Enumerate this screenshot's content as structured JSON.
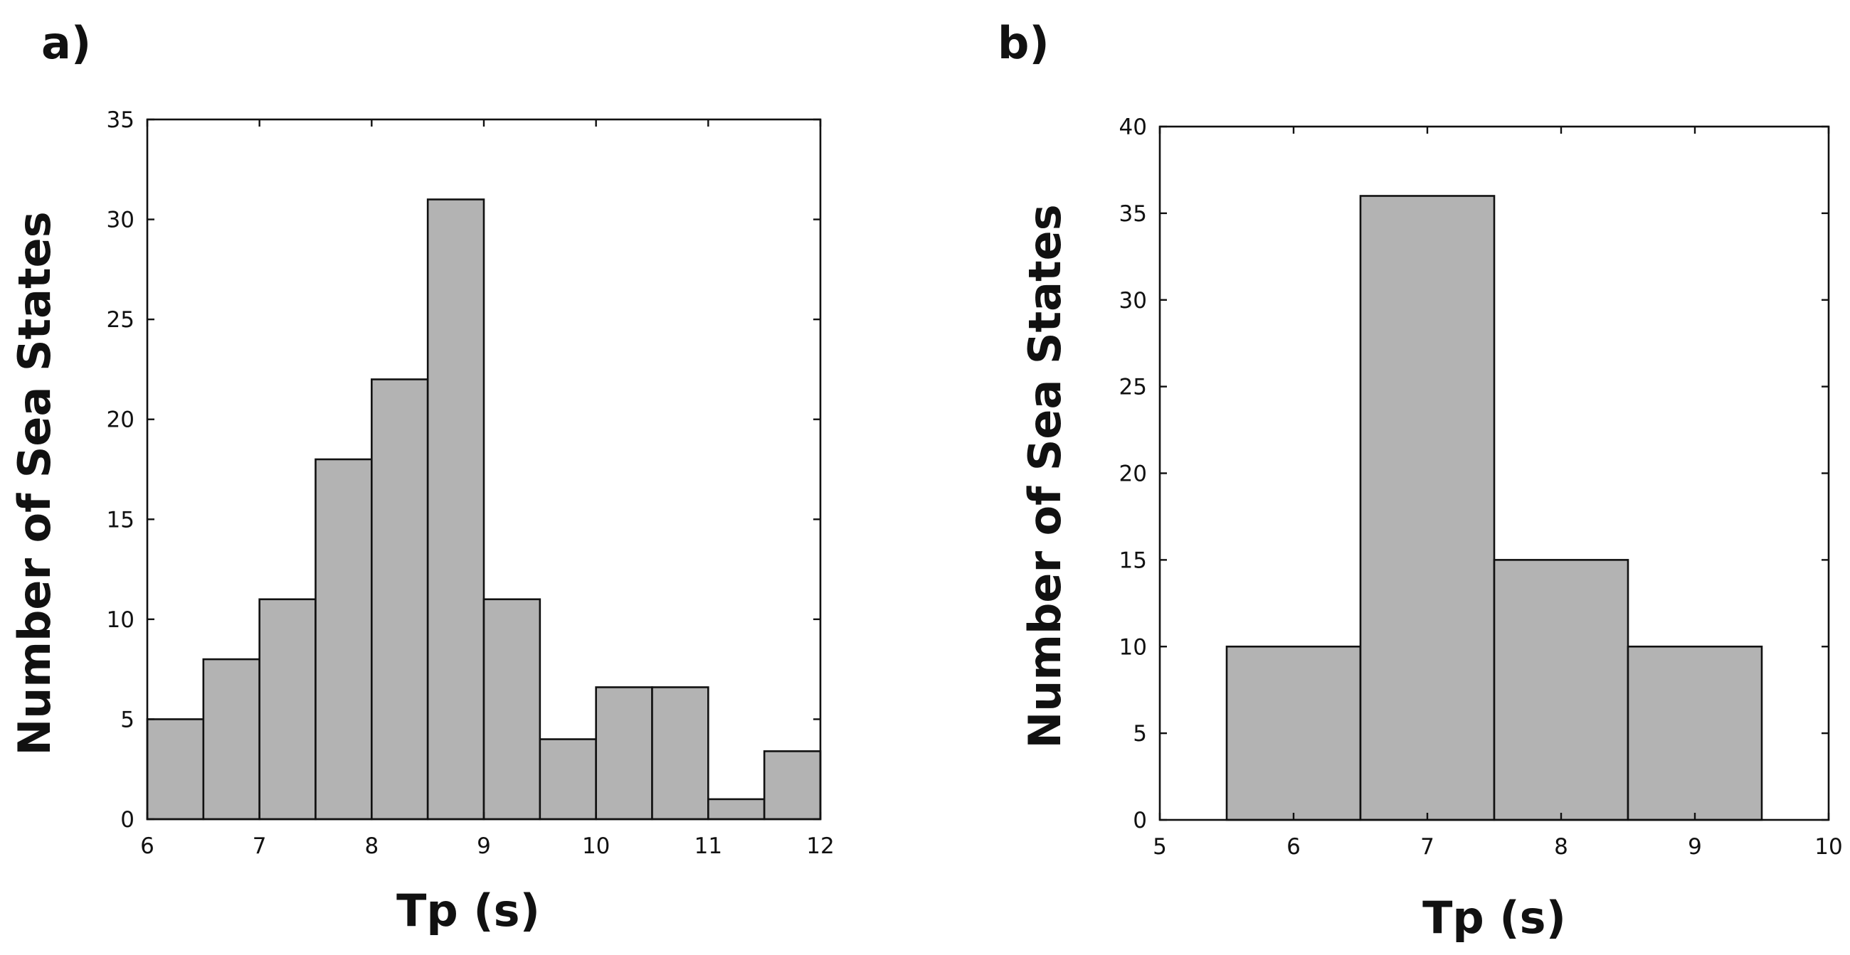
{
  "panels": [
    {
      "label": "a)"
    },
    {
      "label": "b)"
    }
  ],
  "chart_data": [
    {
      "type": "bar",
      "title": "",
      "xlabel": "Tp (s)",
      "ylabel": "Number of Sea States",
      "xlim": [
        6,
        12
      ],
      "ylim": [
        0,
        35
      ],
      "xticks": [
        6,
        7,
        8,
        9,
        10,
        11,
        12
      ],
      "yticks": [
        0,
        5,
        10,
        15,
        20,
        25,
        30,
        35
      ],
      "bin_edges": [
        6,
        6.5,
        7,
        7.5,
        8,
        8.5,
        9,
        9.5,
        10,
        10.5,
        11,
        11.5,
        12
      ],
      "values": [
        5,
        8,
        11,
        18,
        22,
        31,
        11,
        4,
        6.6,
        6.6,
        1,
        3.4
      ],
      "grid": false,
      "legend": "none"
    },
    {
      "type": "bar",
      "title": "",
      "xlabel": "Tp (s)",
      "ylabel": "Number of Sea States",
      "xlim": [
        5,
        10
      ],
      "ylim": [
        0,
        40
      ],
      "xticks": [
        5,
        6,
        7,
        8,
        9,
        10
      ],
      "yticks": [
        0,
        5,
        10,
        15,
        20,
        25,
        30,
        35,
        40
      ],
      "bin_edges": [
        5.5,
        6.5,
        7.5,
        8.5,
        9.5
      ],
      "values": [
        10,
        36,
        15,
        10
      ],
      "grid": false,
      "legend": "none"
    }
  ]
}
